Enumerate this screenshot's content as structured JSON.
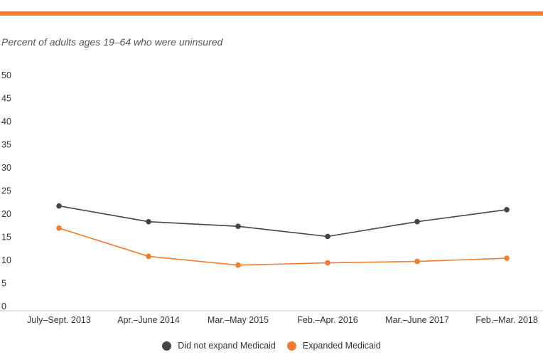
{
  "header": {
    "rule_color": "#EF7D32",
    "subtitle": "Percent of adults ages 19–64 who were uninsured"
  },
  "chart_data": {
    "type": "line",
    "title": "",
    "subtitle": "Percent of adults ages 19–64 who were uninsured",
    "xlabel": "",
    "ylabel": "",
    "ylim": [
      0,
      50
    ],
    "yticks": [
      0,
      5,
      10,
      15,
      20,
      25,
      30,
      35,
      40,
      45,
      50
    ],
    "grid": false,
    "legend_position": "bottom-center",
    "categories": [
      "July–Sept. 2013",
      "Apr.–June 2014",
      "Mar.–May 2015",
      "Feb.–Apr. 2016",
      "Mar.–June 2017",
      "Feb.–Mar. 2018"
    ],
    "series": [
      {
        "name": "Did not expand Medicaid",
        "color": "#454545",
        "values": [
          21.6,
          18.2,
          17.2,
          15.0,
          18.2,
          20.8
        ]
      },
      {
        "name": "Expanded Medicaid",
        "color": "#EF7D32",
        "values": [
          16.8,
          10.7,
          8.8,
          9.3,
          9.6,
          10.3
        ]
      }
    ]
  }
}
